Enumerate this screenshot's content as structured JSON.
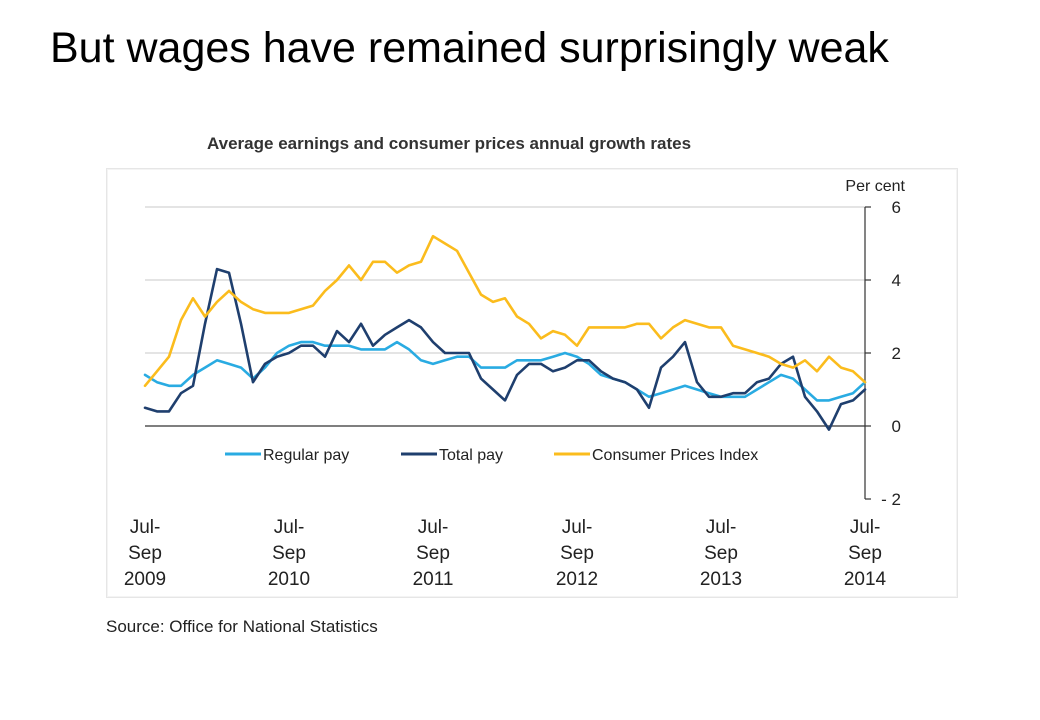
{
  "slide_title": "But wages have remained surprisingly weak",
  "chart_title": "Average earnings and consumer prices annual growth rates",
  "source": "Source: Office for National Statistics",
  "chart_data": {
    "type": "line",
    "title": "Average earnings and consumer prices annual growth rates",
    "ylabel": "Per cent",
    "ylim": [
      -2,
      6
    ],
    "yticks": [
      6,
      4,
      2,
      0,
      -2
    ],
    "grid": true,
    "legend_position": "lower-middle",
    "x_tick_labels": [
      [
        "Jul-",
        "Sep",
        "2009"
      ],
      [
        "Jul-",
        "Sep",
        "2010"
      ],
      [
        "Jul-",
        "Sep",
        "2011"
      ],
      [
        "Jul-",
        "Sep",
        "2012"
      ],
      [
        "Jul-",
        "Sep",
        "2013"
      ],
      [
        "Jul-",
        "Sep",
        "2014"
      ]
    ],
    "x": [
      "Jul-Sep 2009",
      "Aug-Oct 2009",
      "Sep-Nov 2009",
      "Oct-Dec 2009",
      "Nov-Jan 2010",
      "Dec-Feb 2010",
      "Jan-Mar 2010",
      "Feb-Apr 2010",
      "Mar-May 2010",
      "Apr-Jun 2010",
      "May-Jul 2010",
      "Jun-Aug 2010",
      "Jul-Sep 2010",
      "Aug-Oct 2010",
      "Sep-Nov 2010",
      "Oct-Dec 2010",
      "Nov-Jan 2011",
      "Dec-Feb 2011",
      "Jan-Mar 2011",
      "Feb-Apr 2011",
      "Mar-May 2011",
      "Apr-Jun 2011",
      "May-Jul 2011",
      "Jun-Aug 2011",
      "Jul-Sep 2011",
      "Aug-Oct 2011",
      "Sep-Nov 2011",
      "Oct-Dec 2011",
      "Nov-Jan 2012",
      "Dec-Feb 2012",
      "Jan-Mar 2012",
      "Feb-Apr 2012",
      "Mar-May 2012",
      "Apr-Jun 2012",
      "May-Jul 2012",
      "Jun-Aug 2012",
      "Jul-Sep 2012",
      "Aug-Oct 2012",
      "Sep-Nov 2012",
      "Oct-Dec 2012",
      "Nov-Jan 2013",
      "Dec-Feb 2013",
      "Jan-Mar 2013",
      "Feb-Apr 2013",
      "Mar-May 2013",
      "Apr-Jun 2013",
      "May-Jul 2013",
      "Jun-Aug 2013",
      "Jul-Sep 2013",
      "Aug-Oct 2013",
      "Sep-Nov 2013",
      "Oct-Dec 2013",
      "Nov-Jan 2014",
      "Dec-Feb 2014",
      "Jan-Mar 2014",
      "Feb-Apr 2014",
      "Mar-May 2014",
      "Apr-Jun 2014",
      "May-Jul 2014",
      "Jun-Aug 2014",
      "Jul-Sep 2014"
    ],
    "series": [
      {
        "name": "Regular pay",
        "color": "#29abe2",
        "values": [
          1.4,
          1.2,
          1.1,
          1.1,
          1.4,
          1.6,
          1.8,
          1.7,
          1.6,
          1.3,
          1.6,
          2.0,
          2.2,
          2.3,
          2.3,
          2.2,
          2.2,
          2.2,
          2.1,
          2.1,
          2.1,
          2.3,
          2.1,
          1.8,
          1.7,
          1.8,
          1.9,
          1.9,
          1.6,
          1.6,
          1.6,
          1.8,
          1.8,
          1.8,
          1.9,
          2.0,
          1.9,
          1.7,
          1.4,
          1.3,
          1.2,
          1.0,
          0.8,
          0.9,
          1.0,
          1.1,
          1.0,
          0.9,
          0.8,
          0.8,
          0.8,
          1.0,
          1.2,
          1.4,
          1.3,
          1.0,
          0.7,
          0.7,
          0.8,
          0.9,
          1.2
        ]
      },
      {
        "name": "Total pay",
        "color": "#1f3f6e",
        "values": [
          0.5,
          0.4,
          0.4,
          0.9,
          1.1,
          2.8,
          4.3,
          4.2,
          2.8,
          1.2,
          1.7,
          1.9,
          2.0,
          2.2,
          2.2,
          1.9,
          2.6,
          2.3,
          2.8,
          2.2,
          2.5,
          2.7,
          2.9,
          2.7,
          2.3,
          2.0,
          2.0,
          2.0,
          1.3,
          1.0,
          0.7,
          1.4,
          1.7,
          1.7,
          1.5,
          1.6,
          1.8,
          1.8,
          1.5,
          1.3,
          1.2,
          1.0,
          0.5,
          1.6,
          1.9,
          2.3,
          1.2,
          0.8,
          0.8,
          0.9,
          0.9,
          1.2,
          1.3,
          1.7,
          1.9,
          0.8,
          0.4,
          -0.1,
          0.6,
          0.7,
          1.0
        ]
      },
      {
        "name": "Consumer Prices Index",
        "color": "#fbbc1d",
        "values": [
          1.1,
          1.5,
          1.9,
          2.9,
          3.5,
          3.0,
          3.4,
          3.7,
          3.4,
          3.2,
          3.1,
          3.1,
          3.1,
          3.2,
          3.3,
          3.7,
          4.0,
          4.4,
          4.0,
          4.5,
          4.5,
          4.2,
          4.4,
          4.5,
          5.2,
          5.0,
          4.8,
          4.2,
          3.6,
          3.4,
          3.5,
          3.0,
          2.8,
          2.4,
          2.6,
          2.5,
          2.2,
          2.7,
          2.7,
          2.7,
          2.7,
          2.8,
          2.8,
          2.4,
          2.7,
          2.9,
          2.8,
          2.7,
          2.7,
          2.2,
          2.1,
          2.0,
          1.9,
          1.7,
          1.6,
          1.8,
          1.5,
          1.9,
          1.6,
          1.5,
          1.2
        ]
      }
    ]
  }
}
